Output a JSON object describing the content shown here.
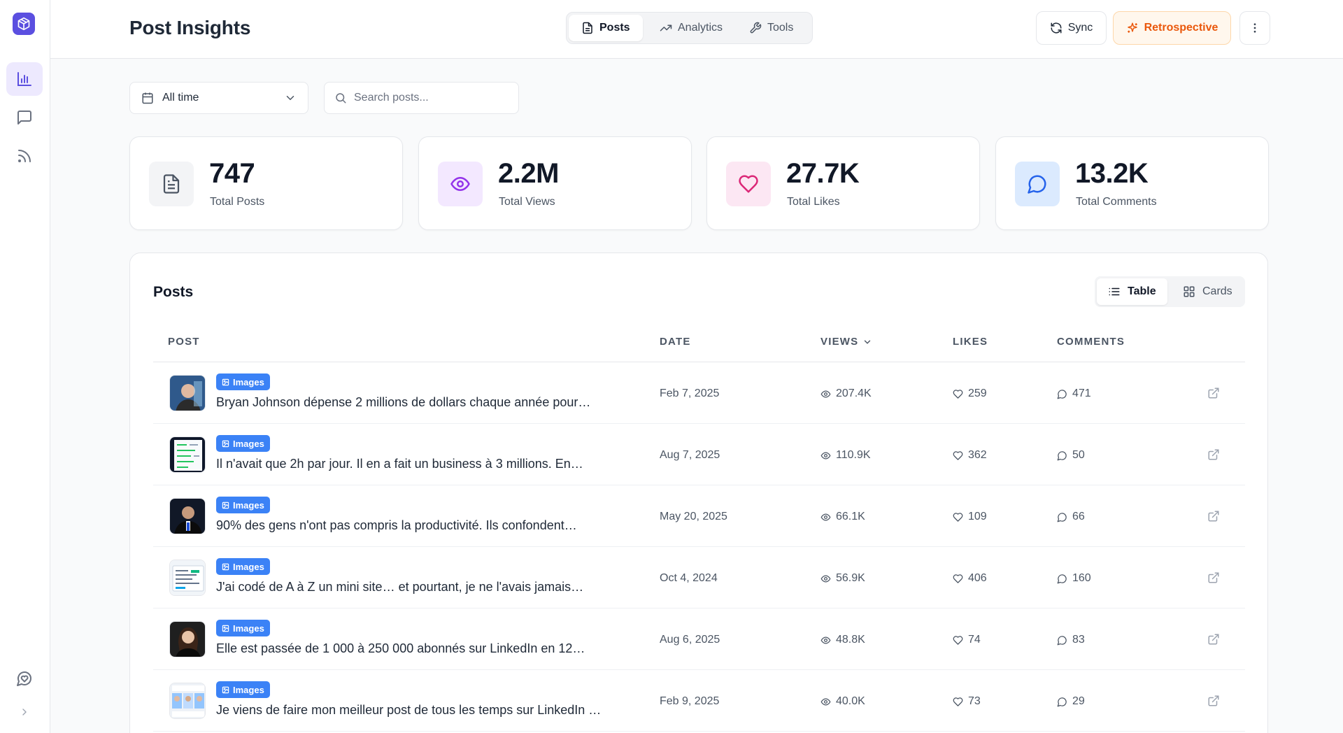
{
  "app": {
    "title": "Post Insights"
  },
  "colors": {
    "brand": "#5b4fe0",
    "accent_blue": "#3b82f6",
    "retro_orange": "#ea580c"
  },
  "sidebar": {
    "items": [
      {
        "name": "analytics",
        "icon": "bar-chart-icon",
        "active": true
      },
      {
        "name": "messages",
        "icon": "message-square-icon",
        "active": false
      },
      {
        "name": "feed",
        "icon": "rss-icon",
        "active": false
      }
    ],
    "bottom": [
      {
        "name": "support",
        "icon": "chat-heart-icon"
      },
      {
        "name": "expand",
        "icon": "chevron-right-icon"
      }
    ]
  },
  "header": {
    "tabs": [
      {
        "label": "Posts",
        "icon": "file-text-icon",
        "active": true
      },
      {
        "label": "Analytics",
        "icon": "trending-up-icon",
        "active": false
      },
      {
        "label": "Tools",
        "icon": "wrench-icon",
        "active": false
      }
    ],
    "sync_label": "Sync",
    "retro_label": "Retrospective"
  },
  "filters": {
    "period": "All time",
    "search_placeholder": "Search posts...",
    "search_value": ""
  },
  "stats": [
    {
      "value": "747",
      "label": "Total Posts",
      "icon": "document-icon",
      "color": "#4b5563",
      "bg": "#f3f4f6"
    },
    {
      "value": "2.2M",
      "label": "Total Views",
      "icon": "eye-icon",
      "color": "#9333ea",
      "bg": "#f3e8ff"
    },
    {
      "value": "27.7K",
      "label": "Total Likes",
      "icon": "heart-icon",
      "color": "#db2777",
      "bg": "#fce7f3"
    },
    {
      "value": "13.2K",
      "label": "Total Comments",
      "icon": "message-circle-icon",
      "color": "#2563eb",
      "bg": "#dbeafe"
    }
  ],
  "posts": {
    "title": "Posts",
    "view_toggle": {
      "table": "Table",
      "cards": "Cards",
      "active": "table"
    },
    "columns": {
      "post": "POST",
      "date": "DATE",
      "views": "VIEWS",
      "likes": "LIKES",
      "comments": "COMMENTS"
    },
    "rows": [
      {
        "badge": "Images",
        "text": "Bryan Johnson dépense 2 millions de dollars chaque année pour…",
        "date": "Feb 7, 2025",
        "views": "207.4K",
        "likes": "259",
        "comments": "471",
        "thumb": "portrait-blue"
      },
      {
        "badge": "Images",
        "text": "Il n'avait que 2h par jour. Il en a fait un business à 3 millions. En…",
        "date": "Aug 7, 2025",
        "views": "110.9K",
        "likes": "362",
        "comments": "50",
        "thumb": "document-green"
      },
      {
        "badge": "Images",
        "text": "90% des gens n'ont pas compris la productivité. Ils confondent…",
        "date": "May 20, 2025",
        "views": "66.1K",
        "likes": "109",
        "comments": "66",
        "thumb": "portrait-dark"
      },
      {
        "badge": "Images",
        "text": "J'ai codé de A à Z un mini site… et pourtant, je ne l'avais jamais…",
        "date": "Oct 4, 2024",
        "views": "56.9K",
        "likes": "406",
        "comments": "160",
        "thumb": "document-light"
      },
      {
        "badge": "Images",
        "text": "Elle est passée de 1 000 à 250 000 abonnés sur LinkedIn en 12…",
        "date": "Aug 6, 2025",
        "views": "48.8K",
        "likes": "74",
        "comments": "83",
        "thumb": "portrait-woman"
      },
      {
        "badge": "Images",
        "text": "Je viens de faire mon meilleur post de tous les temps sur LinkedIn …",
        "date": "Feb 9, 2025",
        "views": "40.0K",
        "likes": "73",
        "comments": "29",
        "thumb": "collage"
      }
    ]
  }
}
